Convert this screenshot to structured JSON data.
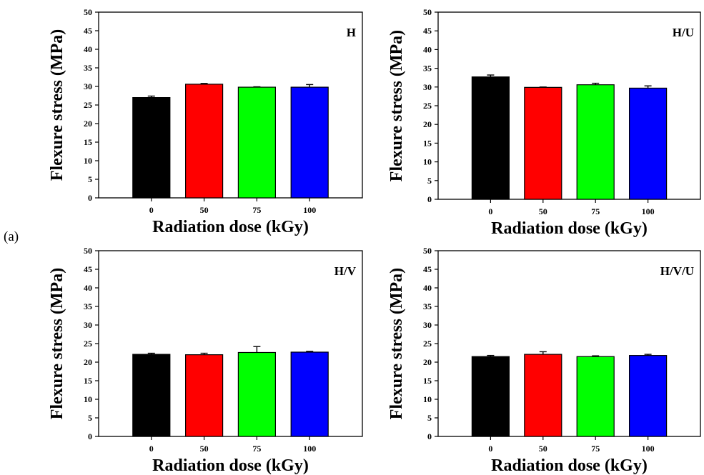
{
  "figure_label": "(a)",
  "colors": {
    "0": "#000000",
    "50": "#ff0000",
    "75": "#00ff00",
    "100": "#0000ff"
  },
  "chart_data": [
    {
      "type": "bar",
      "panel_label": "H",
      "categories": [
        "0",
        "50",
        "75",
        "100"
      ],
      "values": [
        27.0,
        30.6,
        29.8,
        29.8
      ],
      "errors": [
        0.4,
        0.2,
        0.1,
        0.7
      ],
      "xlabel": "Radiation dose (kGy)",
      "ylabel": "Flexure stress (MPa)",
      "ylim": [
        0,
        50
      ],
      "yticks": [
        "0",
        "5",
        "10",
        "15",
        "20",
        "25",
        "30",
        "35",
        "40",
        "45",
        "50"
      ],
      "grid": false
    },
    {
      "type": "bar",
      "panel_label": "H/U",
      "categories": [
        "0",
        "50",
        "75",
        "100"
      ],
      "values": [
        32.7,
        29.9,
        30.6,
        29.7
      ],
      "errors": [
        0.5,
        0.1,
        0.4,
        0.6
      ],
      "xlabel": "Radiation dose (kGy)",
      "ylabel": "Flexure stress (MPa)",
      "ylim": [
        0,
        50
      ],
      "yticks": [
        "0",
        "5",
        "10",
        "15",
        "20",
        "25",
        "30",
        "35",
        "40",
        "45",
        "50"
      ],
      "grid": false
    },
    {
      "type": "bar",
      "panel_label": "H/V",
      "categories": [
        "0",
        "50",
        "75",
        "100"
      ],
      "values": [
        22.1,
        22.0,
        22.6,
        22.7
      ],
      "errors": [
        0.3,
        0.4,
        1.6,
        0.2
      ],
      "xlabel": "Radiation dose (kGy)",
      "ylabel": "Flexure stress (MPa)",
      "ylim": [
        0,
        50
      ],
      "yticks": [
        "0",
        "5",
        "10",
        "15",
        "20",
        "25",
        "30",
        "35",
        "40",
        "45",
        "50"
      ],
      "grid": false
    },
    {
      "type": "bar",
      "panel_label": "H/V/U",
      "categories": [
        "0",
        "50",
        "75",
        "100"
      ],
      "values": [
        21.5,
        22.1,
        21.5,
        21.8
      ],
      "errors": [
        0.3,
        0.7,
        0.2,
        0.3
      ],
      "xlabel": "Radiation dose (kGy)",
      "ylabel": "Flexure stress (MPa)",
      "ylim": [
        0,
        50
      ],
      "yticks": [
        "0",
        "5",
        "10",
        "15",
        "20",
        "25",
        "30",
        "35",
        "40",
        "45",
        "50"
      ],
      "grid": false
    }
  ]
}
